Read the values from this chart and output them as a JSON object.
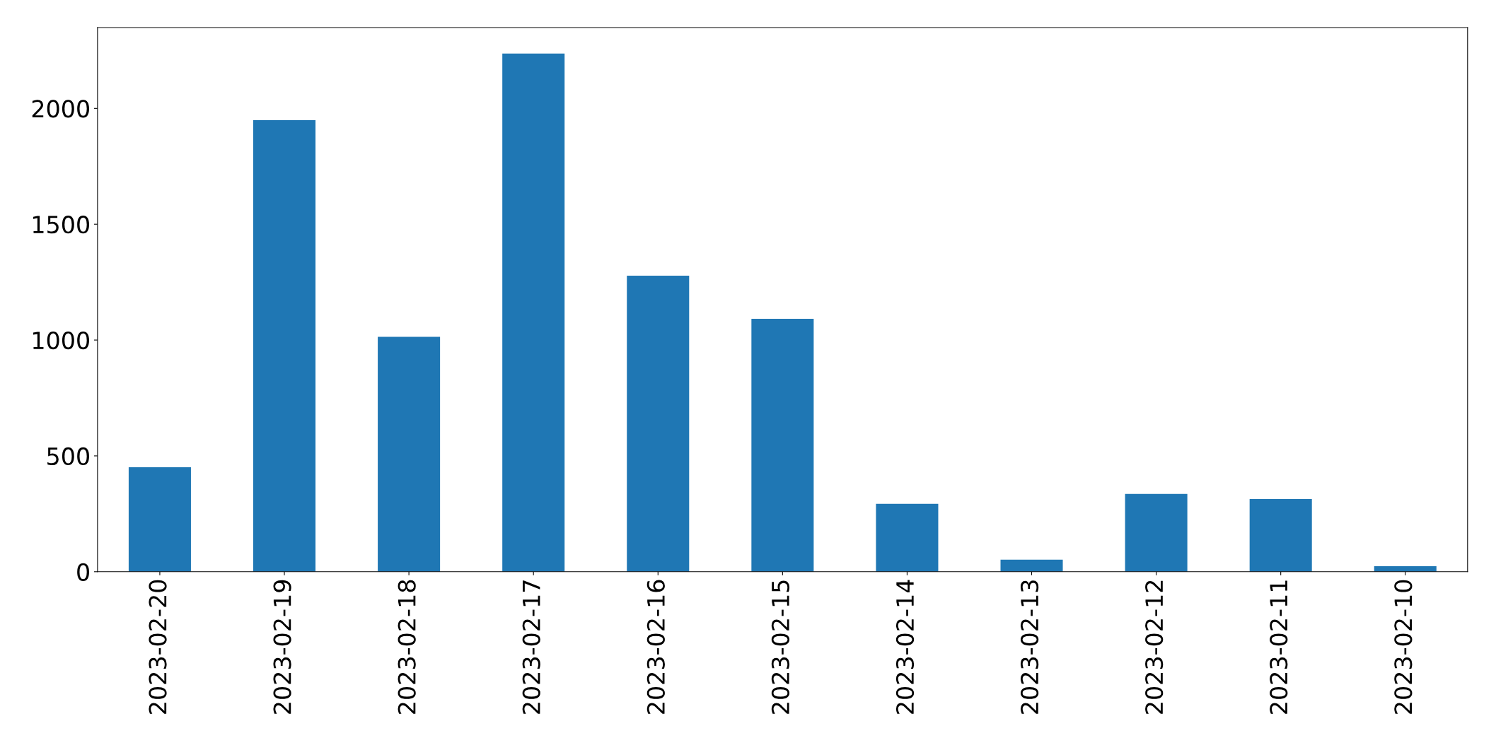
{
  "chart_data": {
    "type": "bar",
    "categories": [
      "2023-02-20",
      "2023-02-19",
      "2023-02-18",
      "2023-02-17",
      "2023-02-16",
      "2023-02-15",
      "2023-02-14",
      "2023-02-13",
      "2023-02-12",
      "2023-02-11",
      "2023-02-10"
    ],
    "values": [
      451,
      1949,
      1014,
      2237,
      1278,
      1092,
      293,
      52,
      336,
      314,
      24
    ],
    "color": "#1f77b4",
    "ylim": [
      0,
      2349
    ],
    "yticks": [
      0,
      500,
      1000,
      1500,
      2000
    ],
    "grid": false,
    "legend": false
  }
}
